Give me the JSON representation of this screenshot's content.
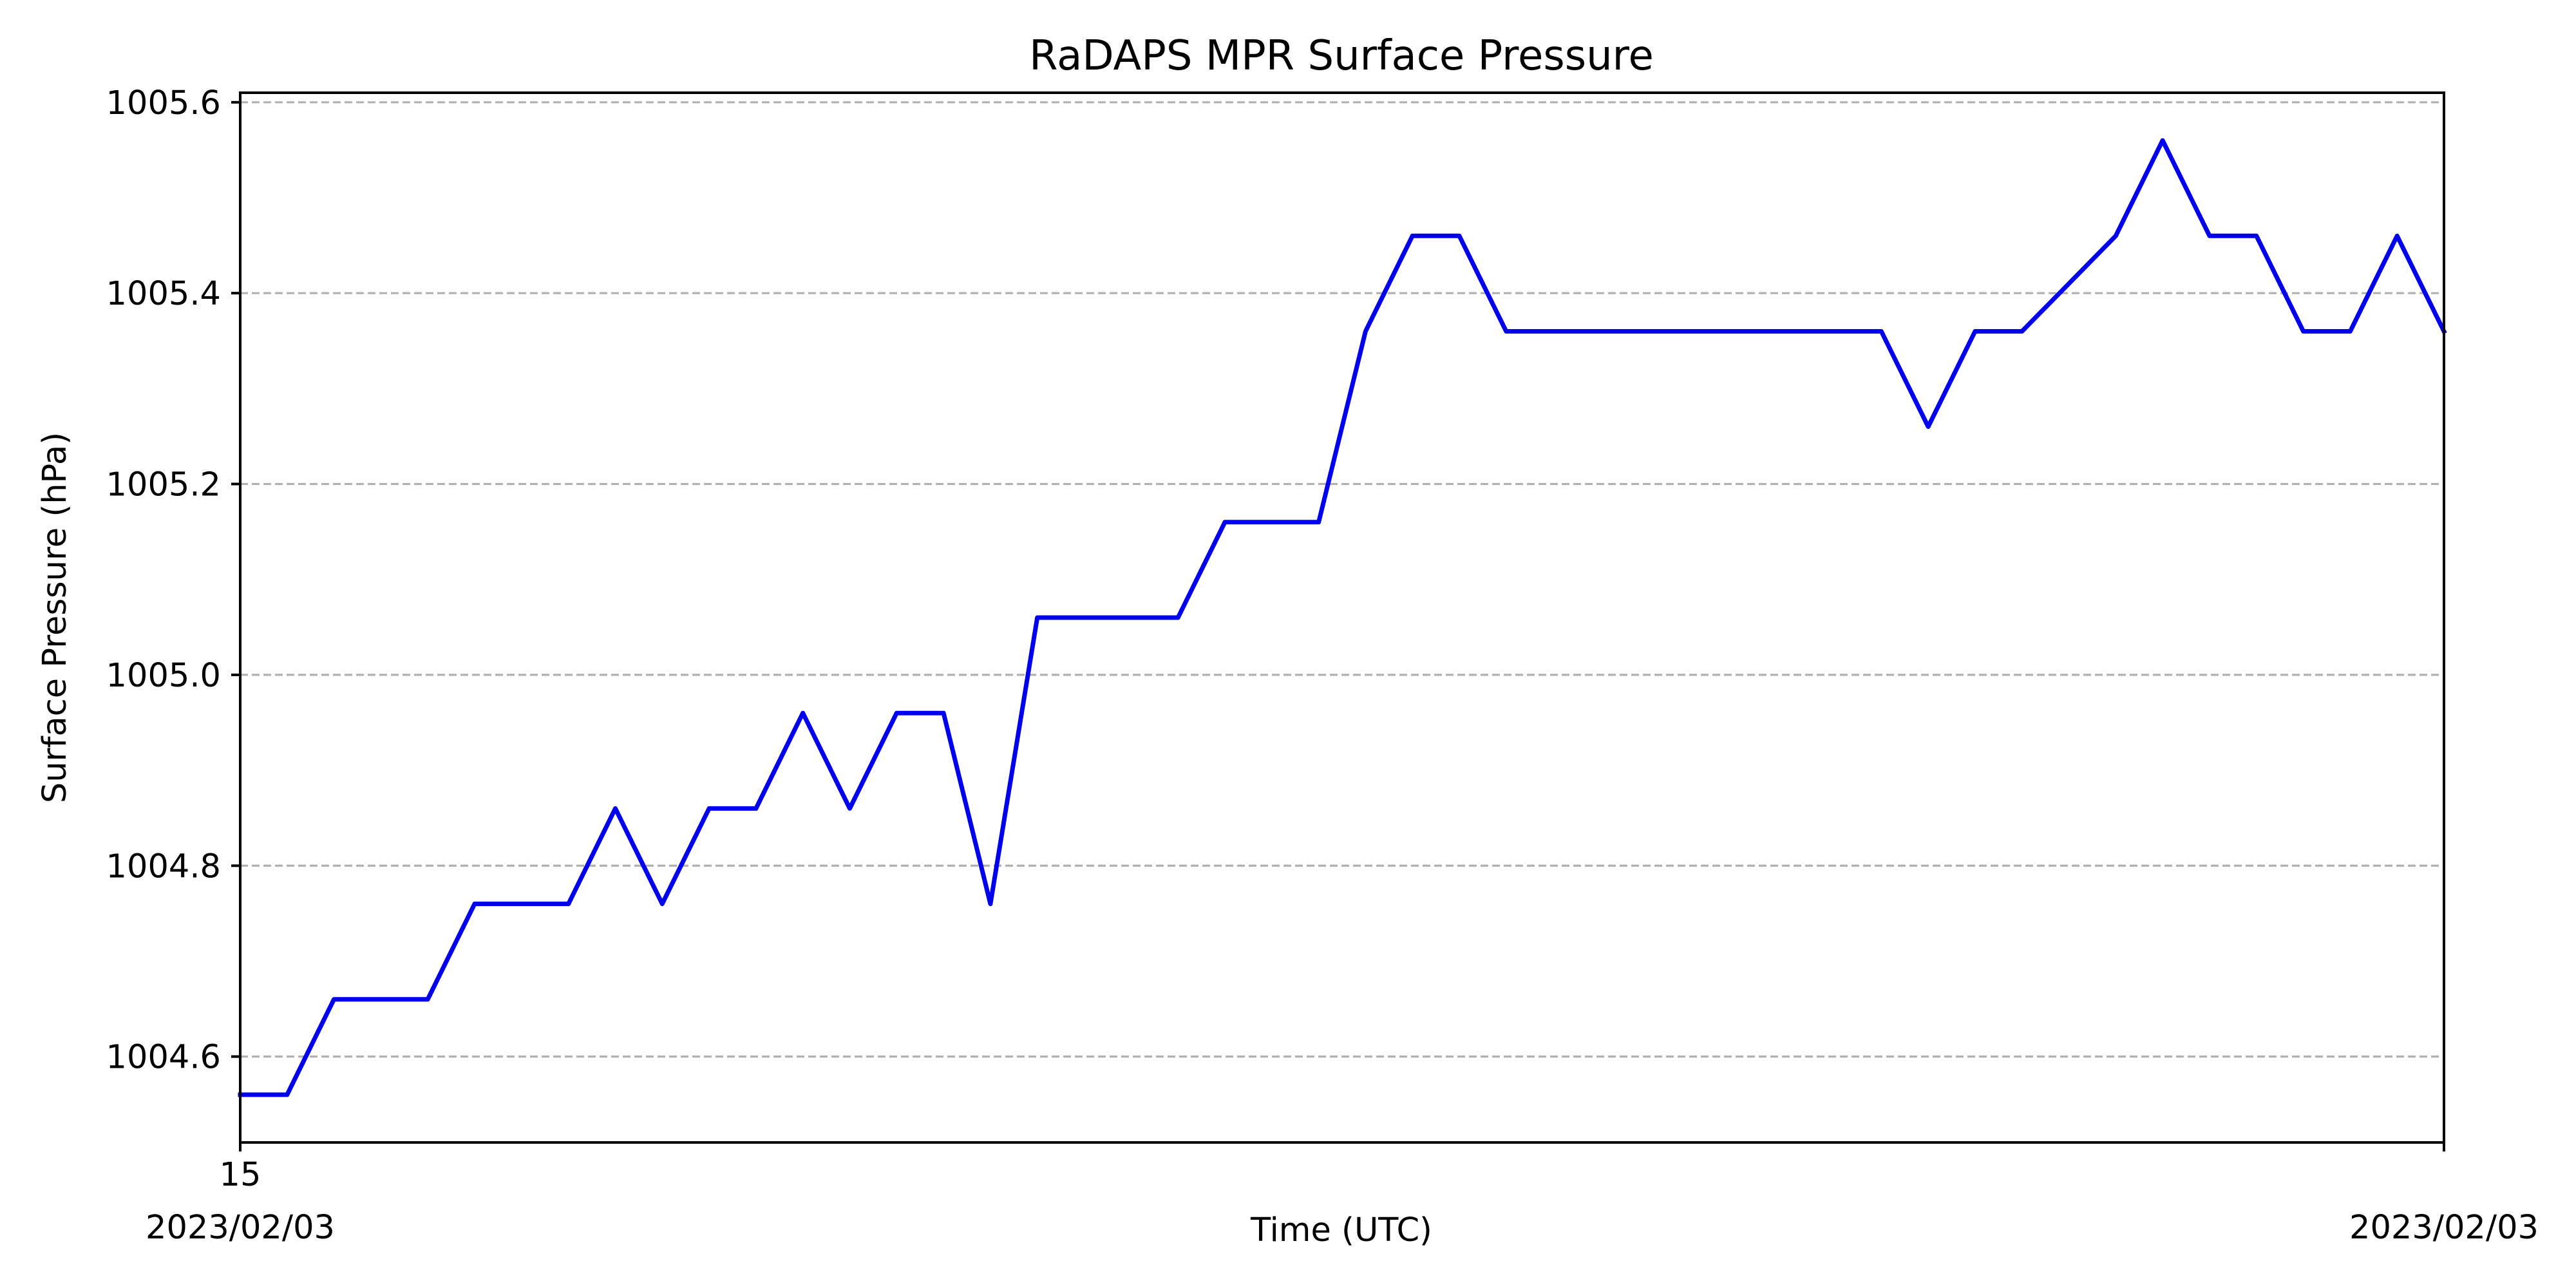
{
  "chart_data": {
    "type": "line",
    "title": "RaDAPS MPR Surface Pressure",
    "xlabel": "Time (UTC)",
    "ylabel": "Surface Pressure (hPa)",
    "x_tick_labels": [
      {
        "line1": "15",
        "line2": "2023/02/03"
      },
      {
        "line1": "",
        "line2": "2023/02/03"
      }
    ],
    "yticks": [
      1004.6,
      1004.8,
      1005.0,
      1005.2,
      1005.4,
      1005.6
    ],
    "y_tick_labels": [
      "1004.6",
      "1004.8",
      "1005.0",
      "1005.2",
      "1005.4",
      "1005.6"
    ],
    "ylim": [
      1004.51,
      1005.61
    ],
    "grid": "y-dashed",
    "legend": "none",
    "series": [
      {
        "color": "#0000ee",
        "values": [
          1004.56,
          1004.56,
          1004.66,
          1004.66,
          1004.66,
          1004.76,
          1004.76,
          1004.76,
          1004.86,
          1004.76,
          1004.86,
          1004.86,
          1004.96,
          1004.86,
          1004.96,
          1004.96,
          1004.76,
          1005.06,
          1005.06,
          1005.06,
          1005.06,
          1005.16,
          1005.16,
          1005.16,
          1005.36,
          1005.46,
          1005.46,
          1005.36,
          1005.36,
          1005.36,
          1005.36,
          1005.36,
          1005.36,
          1005.36,
          1005.36,
          1005.36,
          1005.26,
          1005.36,
          1005.36,
          1005.41,
          1005.46,
          1005.56,
          1005.46,
          1005.46,
          1005.36,
          1005.36,
          1005.46,
          1005.36
        ]
      }
    ]
  }
}
